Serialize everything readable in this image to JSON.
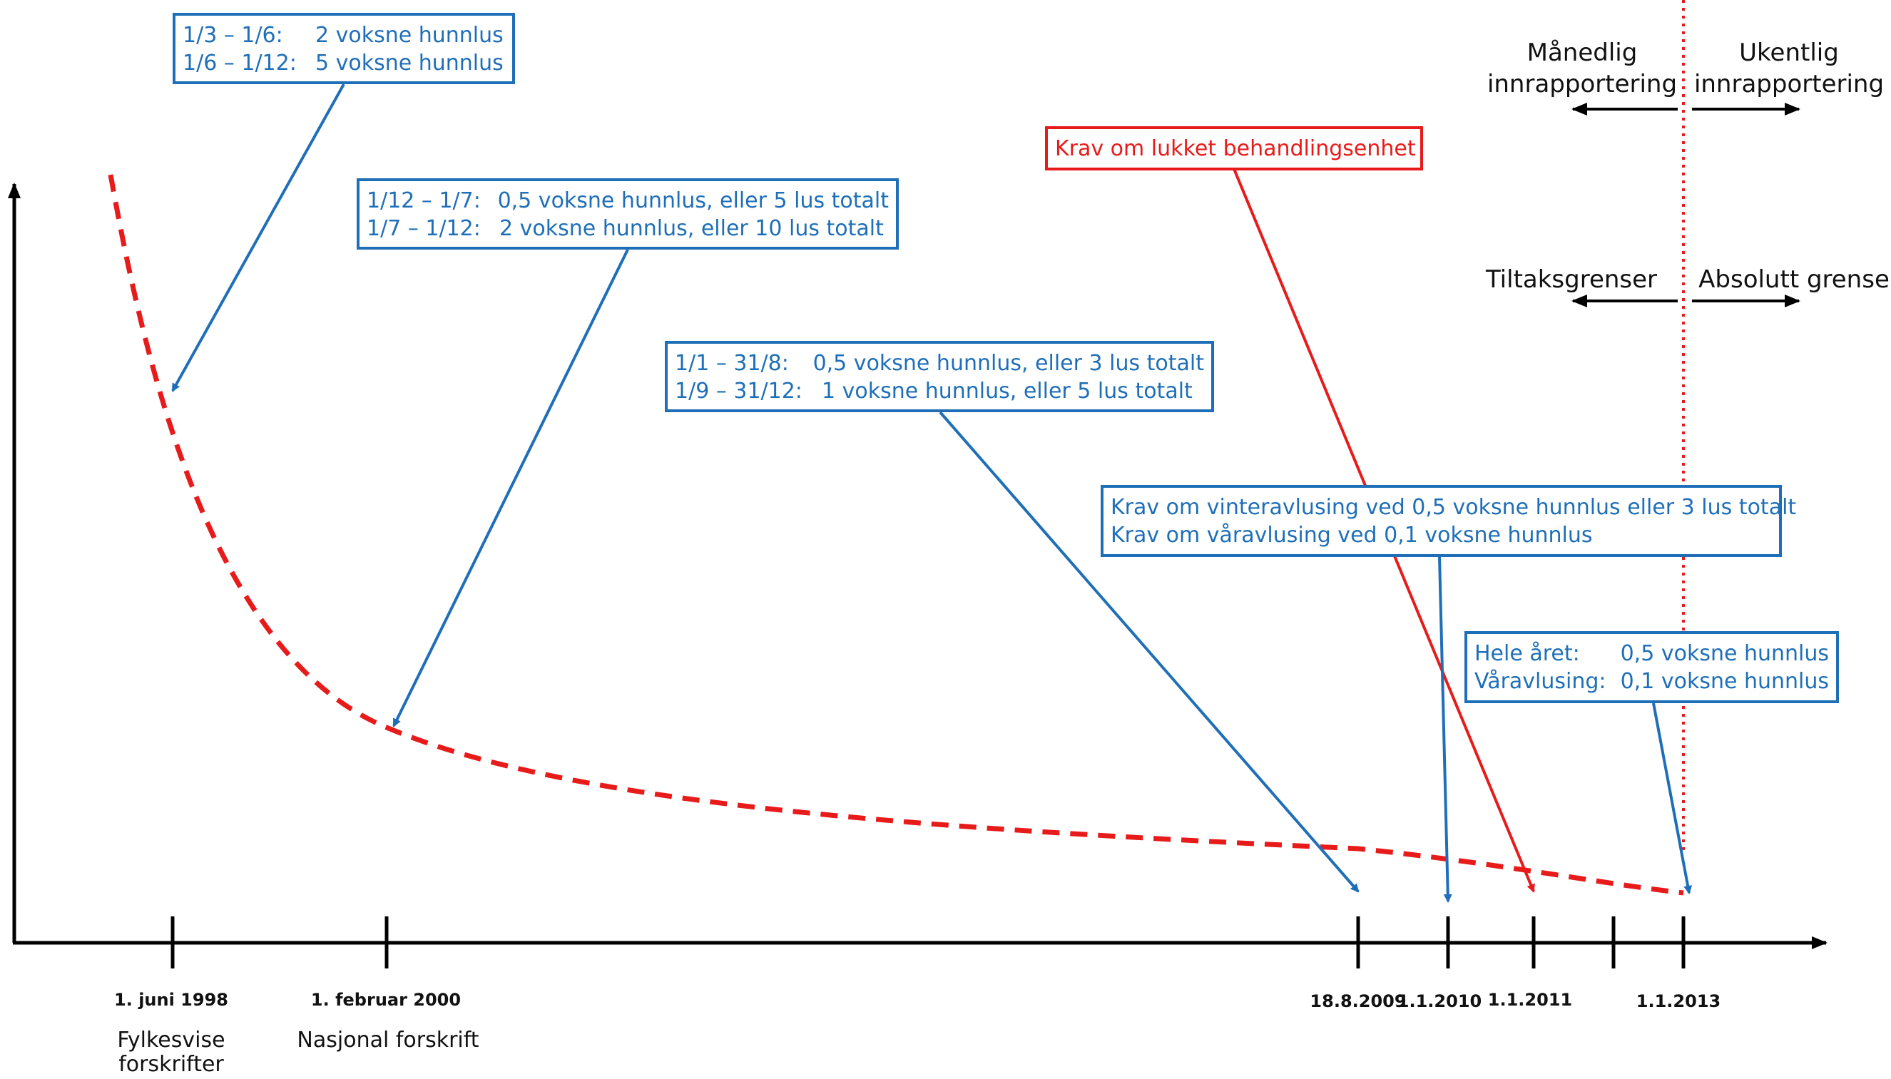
{
  "colors": {
    "blue": "#1f6fb8",
    "red": "#e81b1b",
    "axis": "#000000"
  },
  "boxes": {
    "b1998": {
      "rows": [
        [
          "1/3 – 1/6:",
          "2 voksne hunnlus"
        ],
        [
          "1/6 – 1/12:",
          "5 voksne hunnlus"
        ]
      ]
    },
    "b2000": {
      "rows": [
        [
          "1/12 – 1/7:",
          "0,5 voksne hunnlus, eller 5 lus totalt"
        ],
        [
          "1/7 – 1/12:",
          "2 voksne hunnlus, eller 10 lus totalt"
        ]
      ]
    },
    "b2009": {
      "rows": [
        [
          "1/1 – 31/8:",
          "0,5 voksne hunnlus, eller 3 lus totalt"
        ],
        [
          "1/9 – 31/12:",
          "1 voksne hunnlus, eller 5 lus totalt"
        ]
      ]
    },
    "bred": {
      "text": "Krav om lukket behandlingsenhet"
    },
    "b2010": {
      "lines": [
        "Krav om vinteravlusing ved 0,5 voksne hunnlus eller 3 lus totalt",
        "Krav om våravlusing ved 0,1 voksne hunnlus"
      ]
    },
    "b2013": {
      "rows": [
        [
          "Hele året:",
          "0,5 voksne hunnlus"
        ],
        [
          "Våravlusing:",
          "0,1 voksne hunnlus"
        ]
      ]
    }
  },
  "timeline": {
    "dates": [
      "1. juni 1998",
      "1. februar 2000",
      "18.8.2009",
      "1.1.2010",
      "1.1.2011",
      "1.1.2013"
    ],
    "era_labels": [
      {
        "text": "Fylkesvise forskrifter"
      },
      {
        "text": "Nasjonal forskrift"
      }
    ]
  },
  "regime": {
    "before_reporting": "Månedlig innrapportering",
    "after_reporting": "Ukentlig innrapportering",
    "before_limit": "Tiltaksgrenser",
    "after_limit": "Absolutt grense"
  }
}
